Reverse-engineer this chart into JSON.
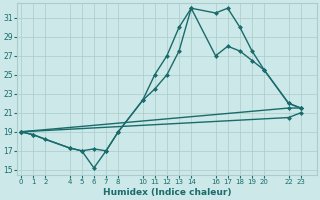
{
  "xlabel": "Humidex (Indice chaleur)",
  "bg_color": "#cce8e8",
  "grid_color": "#aacccc",
  "line_color": "#1a6b6b",
  "ylim": [
    14.5,
    32.5
  ],
  "xlim": [
    -0.3,
    24.3
  ],
  "yticks": [
    15,
    17,
    19,
    21,
    23,
    25,
    27,
    29,
    31
  ],
  "xtick_positions": [
    0,
    1,
    2,
    4,
    5,
    6,
    7,
    8,
    10,
    11,
    12,
    13,
    14,
    16,
    17,
    18,
    19,
    20,
    22,
    23
  ],
  "xtick_labels": [
    "0",
    "1",
    "2",
    "4",
    "5",
    "6",
    "7",
    "8",
    "10",
    "11",
    "12",
    "13",
    "14",
    "16",
    "17",
    "18",
    "19",
    "20",
    "22",
    "23"
  ],
  "series1_x": [
    0,
    1,
    2,
    4,
    5,
    6,
    7,
    8,
    10,
    11,
    12,
    13,
    14,
    16,
    17,
    18,
    19,
    20,
    22,
    23
  ],
  "series1_y": [
    19.0,
    18.7,
    18.2,
    17.3,
    17.0,
    15.2,
    17.0,
    19.0,
    22.3,
    25.0,
    27.0,
    30.0,
    32.0,
    31.5,
    32.0,
    30.0,
    27.5,
    25.5,
    22.0,
    21.5
  ],
  "series2_x": [
    0,
    1,
    4,
    5,
    6,
    7,
    8,
    10,
    11,
    12,
    13,
    14,
    16,
    17,
    18,
    19,
    20,
    22,
    23
  ],
  "series2_y": [
    19.0,
    18.7,
    17.3,
    17.0,
    17.2,
    17.0,
    19.0,
    22.3,
    23.5,
    25.0,
    27.5,
    32.0,
    27.0,
    28.0,
    27.5,
    26.5,
    25.5,
    22.0,
    21.5
  ],
  "series3_x": [
    0,
    22,
    23
  ],
  "series3_y": [
    19.0,
    21.5,
    21.5
  ],
  "series4_x": [
    0,
    22,
    23
  ],
  "series4_y": [
    19.0,
    20.5,
    21.0
  ],
  "marker": "D",
  "markersize": 2.5,
  "linewidth": 1.0
}
